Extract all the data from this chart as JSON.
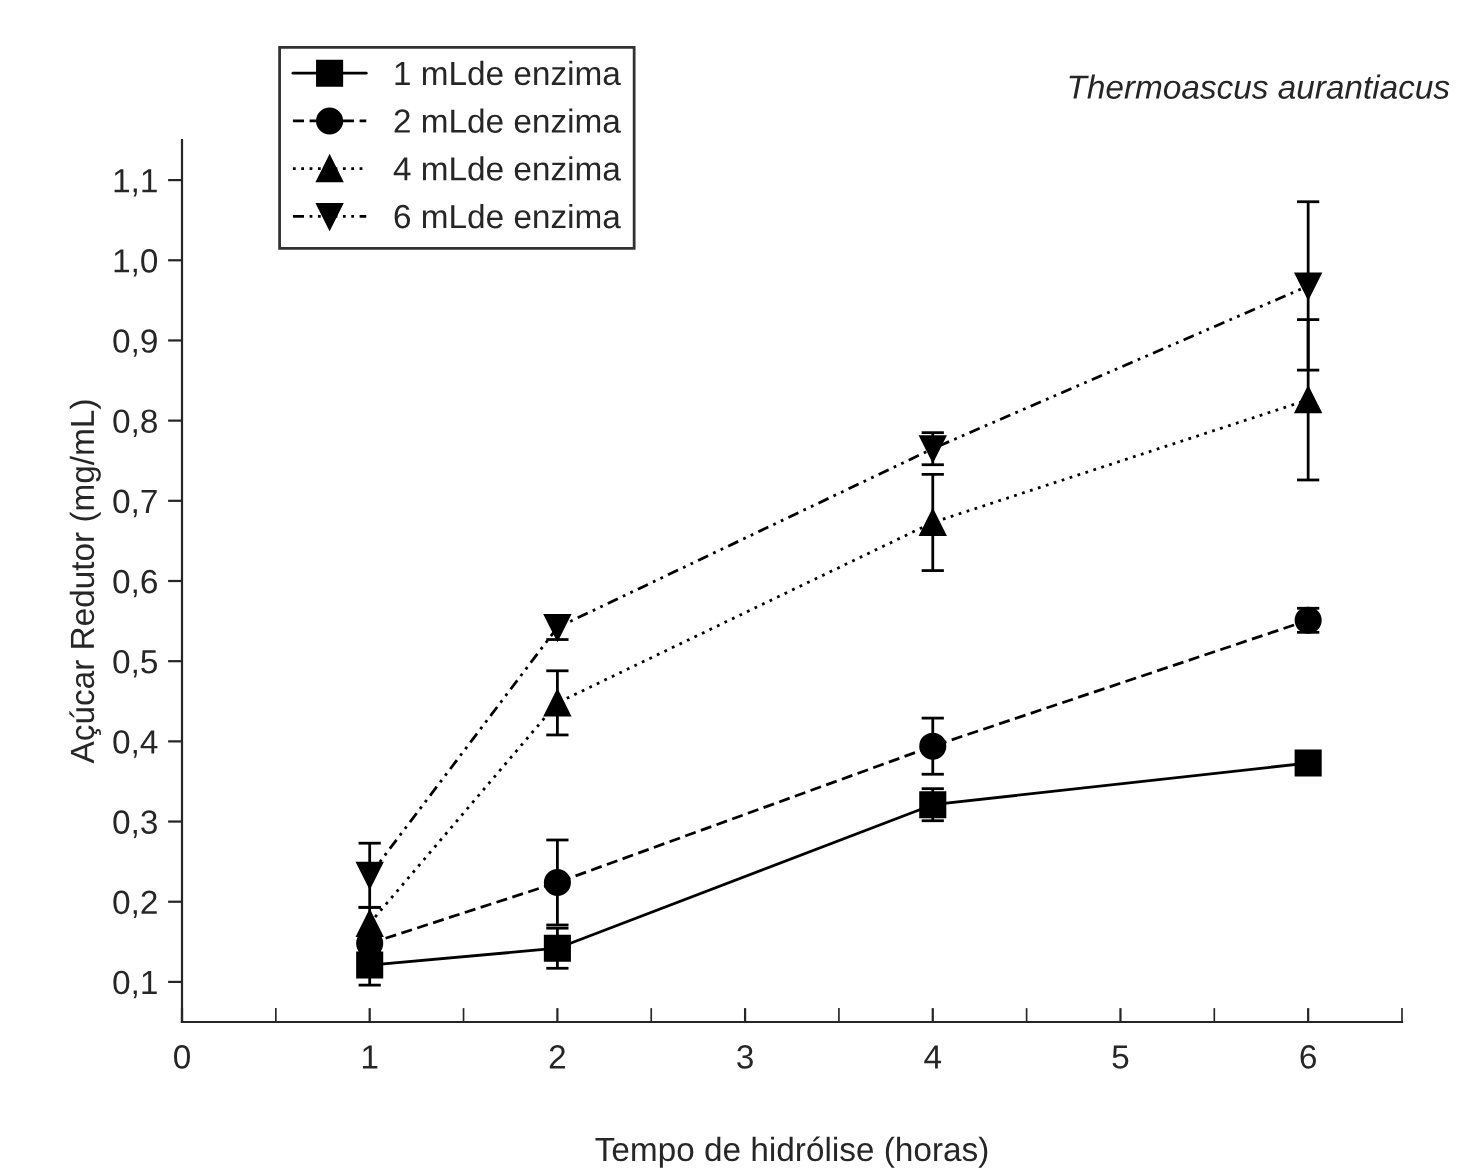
{
  "chart_data": {
    "type": "line",
    "xlabel": "Tempo de hidrólise (horas)",
    "ylabel": "Açúcar Redutor (mg/mL)",
    "annotations": [
      "Thermoascus aurantiacus"
    ],
    "x": [
      1,
      2,
      4,
      6
    ],
    "series": [
      {
        "name": "1 mLde enzima",
        "color": "#000000",
        "marker": "square",
        "line_style": "solid",
        "values": [
          0.121,
          0.142,
          0.321,
          0.373
        ],
        "errors": [
          0.025,
          0.025,
          0.02,
          null
        ]
      },
      {
        "name": "2 mLde enzima",
        "color": "#000000",
        "marker": "circle",
        "line_style": "dashed",
        "values": [
          0.148,
          0.224,
          0.394,
          0.551
        ],
        "errors": [
          0.01,
          0.053,
          0.035,
          0.015
        ]
      },
      {
        "name": "4 mLde enzima",
        "color": "#000000",
        "marker": "triangle",
        "line_style": "dotted",
        "values": [
          0.173,
          0.448,
          0.673,
          0.826
        ],
        "errors": [
          0.02,
          0.04,
          0.06,
          0.1
        ]
      },
      {
        "name": "6 mLde enzima",
        "color": "#000000",
        "marker": "triangle_down",
        "line_style": "dashdot",
        "values": [
          0.233,
          0.542,
          0.765,
          0.968
        ],
        "errors": [
          0.04,
          0.015,
          0.02,
          0.105
        ]
      }
    ],
    "xlim": [
      0,
      6.5
    ],
    "ylim": [
      0.05,
      1.15
    ],
    "xticks": [
      0,
      1,
      2,
      3,
      4,
      5,
      6
    ],
    "yticks": [
      {
        "value": 0.1,
        "label": "0,1"
      },
      {
        "value": 0.2,
        "label": "0,2"
      },
      {
        "value": 0.3,
        "label": "0,3"
      },
      {
        "value": 0.4,
        "label": "0,4"
      },
      {
        "value": 0.5,
        "label": "0,5"
      },
      {
        "value": 0.6,
        "label": "0,6"
      },
      {
        "value": 0.7,
        "label": "0,7"
      },
      {
        "value": 0.8,
        "label": "0,8"
      },
      {
        "value": 0.9,
        "label": "0,9"
      },
      {
        "value": 1.0,
        "label": "1,0"
      },
      {
        "value": 1.1,
        "label": "1,1"
      }
    ],
    "grid": false,
    "legend": "top left"
  }
}
